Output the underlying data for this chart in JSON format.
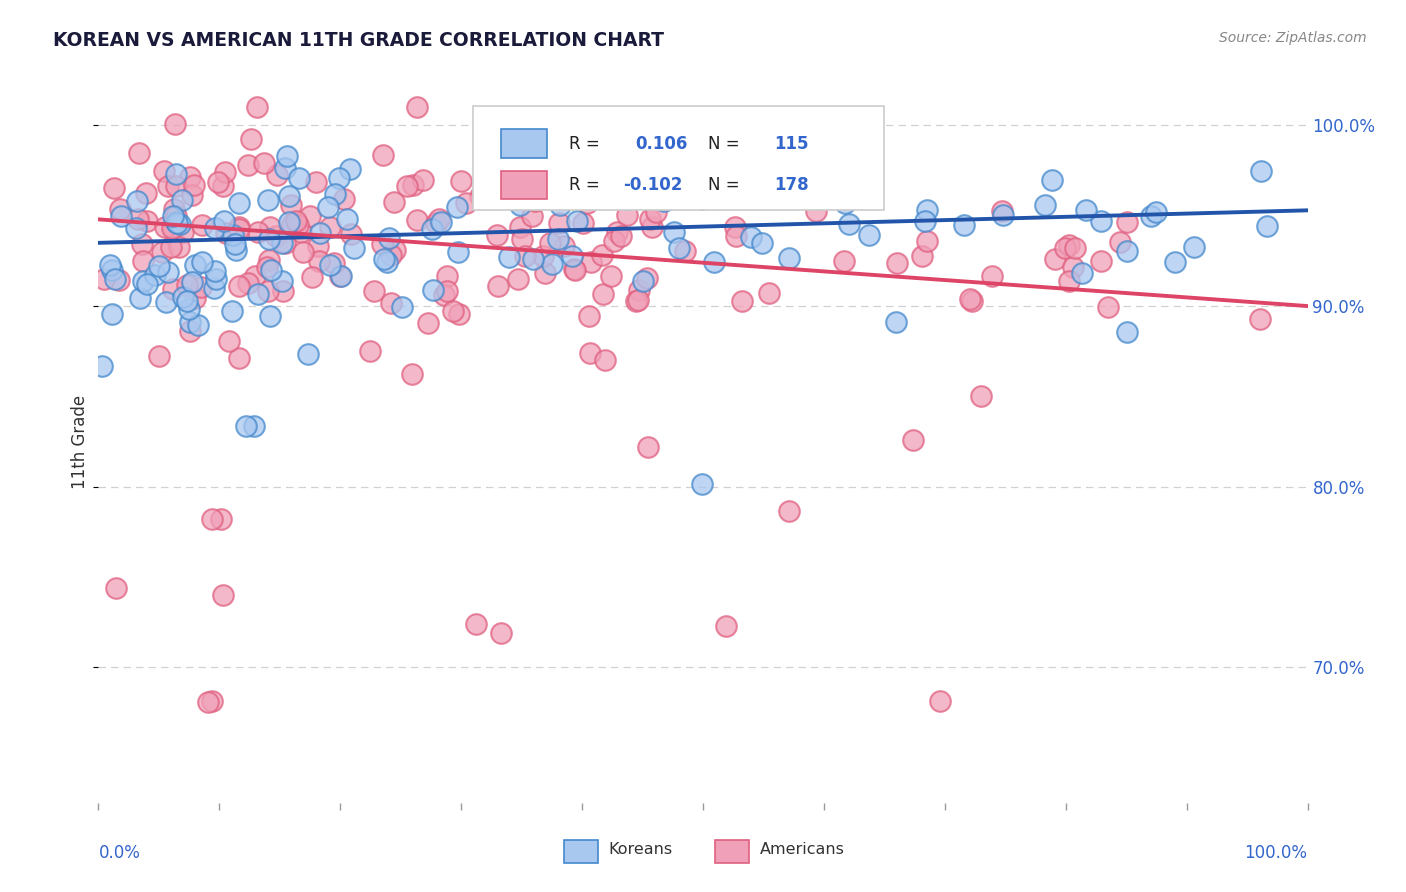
{
  "title": "KOREAN VS AMERICAN 11TH GRADE CORRELATION CHART",
  "source": "Source: ZipAtlas.com",
  "ylabel": "11th Grade",
  "xlim": [
    0.0,
    1.0
  ],
  "ylim": [
    0.625,
    1.025
  ],
  "blue_R": 0.106,
  "blue_N": 115,
  "pink_R": -0.102,
  "pink_N": 178,
  "blue_fill": "#a8c8f0",
  "pink_fill": "#f0a0b8",
  "blue_edge": "#4488cc",
  "pink_edge": "#e06080",
  "blue_line_color": "#2255aa",
  "pink_line_color": "#dd4466",
  "grid_color": "#cccccc",
  "title_color": "#1a1a3a",
  "label_color": "#3366cc",
  "axis_text_color": "#3366cc",
  "background_color": "#ffffff",
  "blue_slope": 0.018,
  "blue_intercept": 0.935,
  "pink_slope": -0.048,
  "pink_intercept": 0.948,
  "yticks": [
    0.7,
    0.8,
    0.9,
    1.0
  ],
  "ytick_labels": [
    "70.0%",
    "80.0%",
    "90.0%",
    "100.0%"
  ],
  "xticks": [
    0.0,
    0.1,
    0.2,
    0.3,
    0.4,
    0.5,
    0.6,
    0.7,
    0.8,
    0.9,
    1.0
  ]
}
